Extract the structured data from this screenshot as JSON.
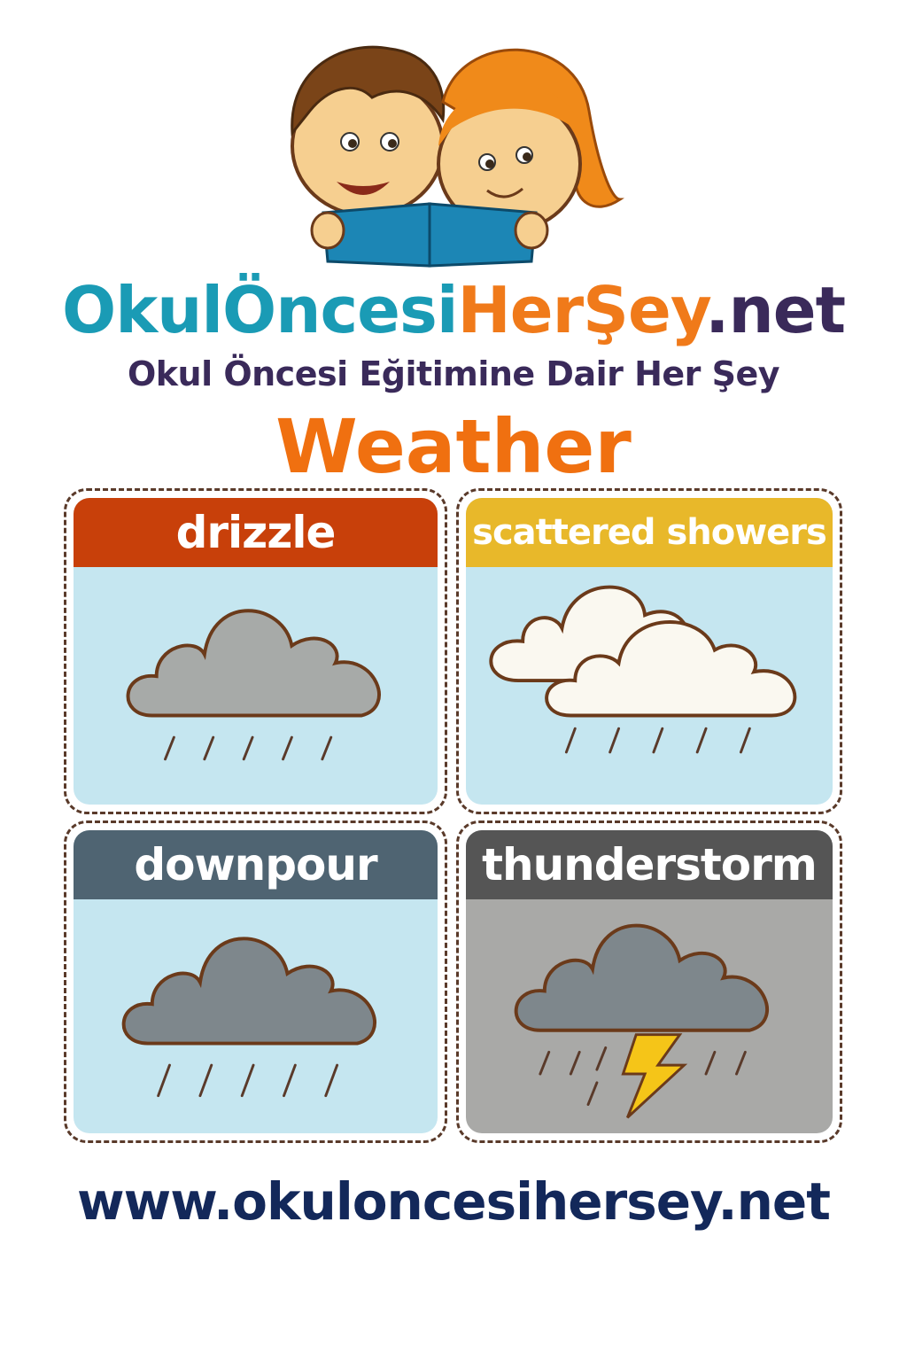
{
  "brand": {
    "part1": "OkulÖncesi",
    "part2": "HerŞey",
    "part3": ".net",
    "colors": {
      "part1": "#1A9BB5",
      "part2": "#F07A1A",
      "part3": "#3A2A5A"
    }
  },
  "tagline": "Okul Öncesi Eğitimine Dair Her Şey",
  "title": "Weather",
  "cards": [
    {
      "label": "drizzle",
      "header_color": "#C8400A",
      "bg_color": "#C5E6F0",
      "icon": "gray-cloud-light-rain-icon"
    },
    {
      "label": "scattered showers",
      "header_color": "#E8B82A",
      "bg_color": "#C5E6F0",
      "icon": "white-clouds-rain-icon"
    },
    {
      "label": "downpour",
      "header_color": "#4F6472",
      "bg_color": "#C5E6F0",
      "icon": "dark-cloud-rain-icon"
    },
    {
      "label": "thunderstorm",
      "header_color": "#555555",
      "bg_color": "#A9A9A7",
      "icon": "storm-cloud-lightning-icon"
    }
  ],
  "footer_url": "www.okuloncesihersey.net"
}
